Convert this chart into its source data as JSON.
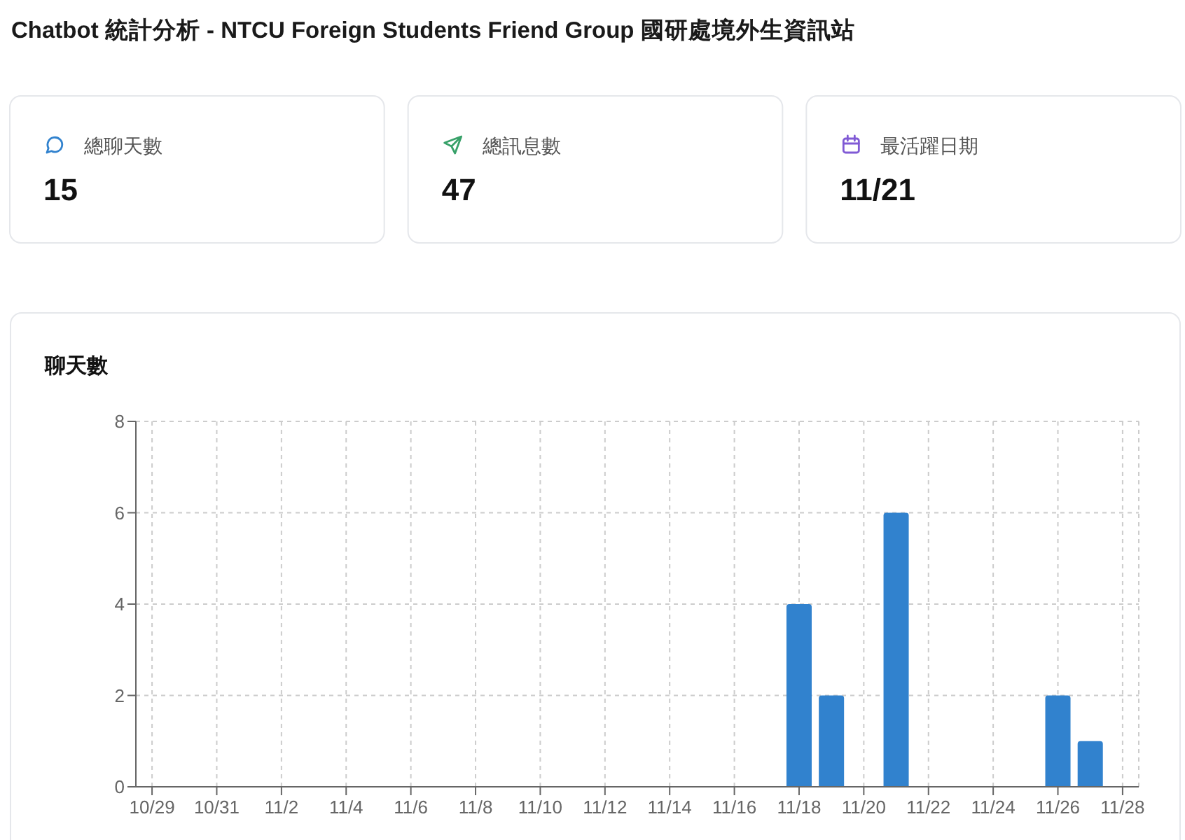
{
  "chart_data": [
    {
      "type": "other",
      "title": "Chatbot 統計分析 - NTCU Foreign Students Friend Group 國研處境外生資訊站",
      "categories": [
        "總聊天數",
        "總訊息數",
        "最活躍日期"
      ],
      "value_labels": [
        "15",
        "47",
        "11/21"
      ]
    },
    {
      "type": "bar",
      "title": "聊天數",
      "categories": [
        "10/29",
        null,
        "10/31",
        null,
        "11/2",
        null,
        "11/4",
        null,
        "11/6",
        null,
        "11/8",
        null,
        "11/10",
        null,
        "11/12",
        null,
        "11/14",
        null,
        "11/16",
        null,
        "11/18",
        null,
        "11/20",
        null,
        "11/22",
        null,
        "11/24",
        null,
        "11/26",
        null,
        "11/28"
      ],
      "values": [
        0,
        0,
        0,
        0,
        0,
        0,
        0,
        0,
        0,
        0,
        0,
        0,
        0,
        0,
        0,
        0,
        0,
        0,
        0,
        0,
        4,
        2,
        0,
        6,
        0,
        0,
        0,
        0,
        2,
        1,
        0
      ],
      "color": "#3182ce",
      "ylim": [
        0,
        8
      ],
      "yticks": [
        0,
        2,
        4,
        6,
        8
      ],
      "grid": true
    }
  ]
}
